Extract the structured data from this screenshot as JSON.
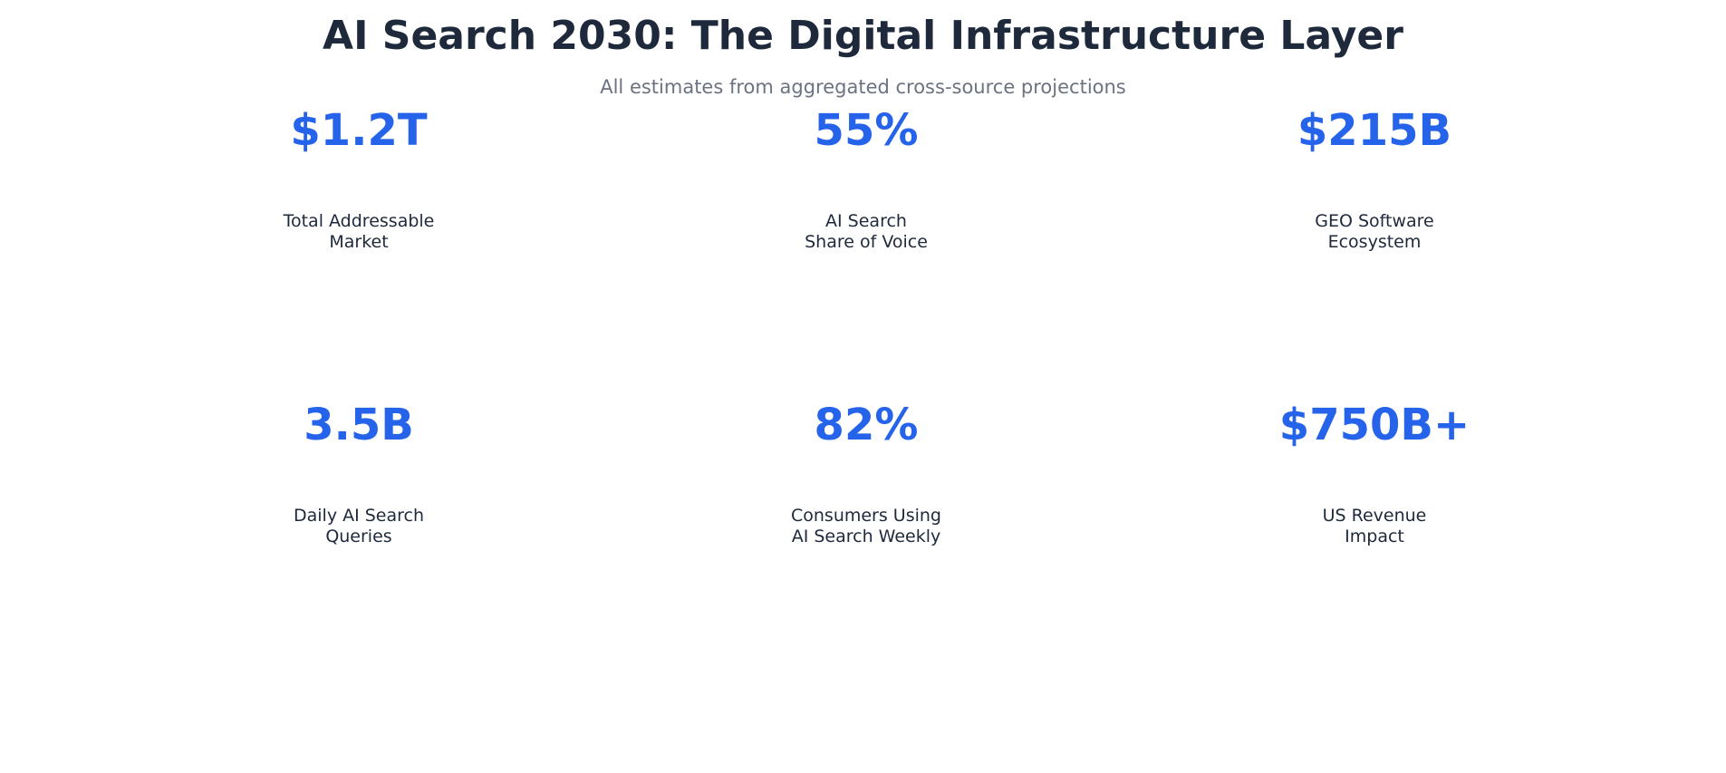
{
  "chart_data": {
    "type": "table",
    "title": "AI Search 2030: The Digital Infrastructure Layer",
    "subtitle": "All estimates from aggregated cross-source projections",
    "colors": {
      "title": "#1e293b",
      "subtitle": "#6b7280",
      "value": "#2563eb",
      "label": "#1e293b",
      "background": "#ffffff"
    },
    "stats": [
      {
        "value": "$1.2T",
        "label_lines": [
          "Total Addressable",
          "Market"
        ]
      },
      {
        "value": "55%",
        "label_lines": [
          "AI Search",
          "Share of Voice"
        ]
      },
      {
        "value": "$215B",
        "label_lines": [
          "GEO Software",
          "Ecosystem"
        ]
      },
      {
        "value": "3.5B",
        "label_lines": [
          "Daily AI Search",
          "Queries"
        ]
      },
      {
        "value": "82%",
        "label_lines": [
          "Consumers Using",
          "AI Search Weekly"
        ]
      },
      {
        "value": "$750B+",
        "label_lines": [
          "US Revenue",
          "Impact"
        ]
      }
    ]
  }
}
